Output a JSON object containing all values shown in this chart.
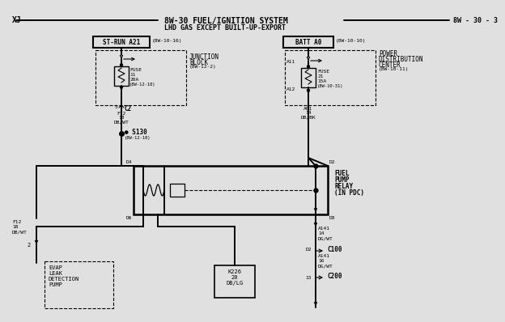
{
  "bg_color": "#e0e0e0",
  "title_line1": "8W-30 FUEL/IGNITION SYSTEM",
  "title_line2": "LHD GAS EXCEPT BUILT-UP-EXPORT",
  "page_label": "XJ",
  "page_num": "8W - 30 - 3"
}
